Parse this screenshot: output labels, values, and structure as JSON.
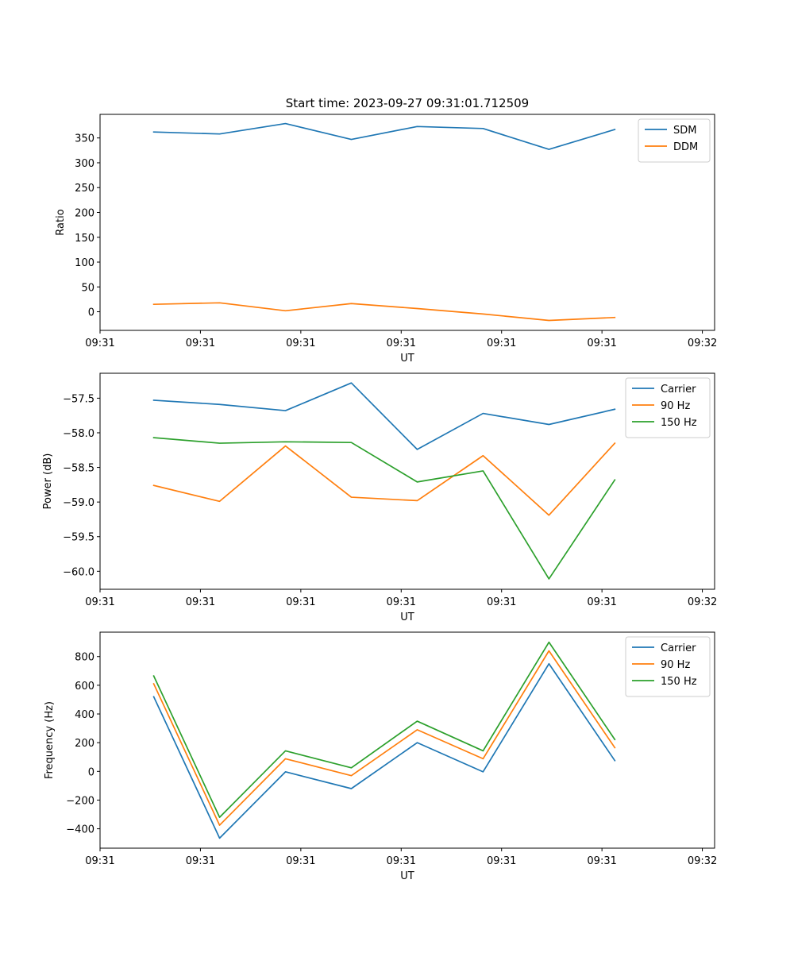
{
  "figure_title": "Start time: 2023-09-27 09:31:01.712509",
  "chart_data": [
    {
      "type": "line",
      "name": "ratio",
      "title": "Start time: 2023-09-27 09:31:01.712509",
      "xlabel": "UT",
      "ylabel": "Ratio",
      "x": [
        1,
        2,
        3,
        4,
        5,
        6,
        7,
        8
      ],
      "xlim": [
        0.185,
        9.515
      ],
      "xticks": [
        0.185,
        1.709,
        3.233,
        4.757,
        6.281,
        7.805,
        9.329
      ],
      "xtick_labels": [
        "09:31",
        "09:31",
        "09:31",
        "09:31",
        "09:31",
        "09:31",
        "09:32"
      ],
      "ylim": [
        -37.5,
        397.5
      ],
      "yticks": [
        0,
        50,
        100,
        150,
        200,
        250,
        300,
        350
      ],
      "ytick_labels": [
        "0",
        "50",
        "100",
        "150",
        "200",
        "250",
        "300",
        "350"
      ],
      "legend_position": "upper right",
      "series": [
        {
          "name": "SDM",
          "color": "#1f77b4",
          "values": [
            362,
            358,
            379,
            347,
            373,
            369,
            327,
            367
          ]
        },
        {
          "name": "DDM",
          "color": "#ff7f0e",
          "values": [
            15,
            18,
            2,
            16.5,
            6.5,
            -4.5,
            -17.5,
            -11.5
          ]
        }
      ]
    },
    {
      "type": "line",
      "name": "power",
      "title": "",
      "xlabel": "UT",
      "ylabel": "Power (dB)",
      "x": [
        1,
        2,
        3,
        4,
        5,
        6,
        7,
        8
      ],
      "xlim": [
        0.185,
        9.515
      ],
      "xticks": [
        0.185,
        1.709,
        3.233,
        4.757,
        6.281,
        7.805,
        9.329
      ],
      "xtick_labels": [
        "09:31",
        "09:31",
        "09:31",
        "09:31",
        "09:31",
        "09:31",
        "09:32"
      ],
      "ylim": [
        -60.26,
        -57.14
      ],
      "yticks": [
        -60.0,
        -59.5,
        -59.0,
        -58.5,
        -58.0,
        -57.5
      ],
      "ytick_labels": [
        "−60.0",
        "−59.5",
        "−59.0",
        "−58.5",
        "−58.0",
        "−57.5"
      ],
      "legend_position": "upper right",
      "series": [
        {
          "name": "Carrier",
          "color": "#1f77b4",
          "values": [
            -57.53,
            -57.59,
            -57.68,
            -57.28,
            -58.24,
            -57.72,
            -57.88,
            -57.66
          ]
        },
        {
          "name": "90 Hz",
          "color": "#ff7f0e",
          "values": [
            -58.76,
            -58.99,
            -58.19,
            -58.93,
            -58.98,
            -58.33,
            -59.19,
            -58.15
          ]
        },
        {
          "name": "150 Hz",
          "color": "#2ca02c",
          "values": [
            -58.07,
            -58.15,
            -58.13,
            -58.14,
            -58.71,
            -58.55,
            -60.11,
            -58.68
          ]
        }
      ]
    },
    {
      "type": "line",
      "name": "frequency",
      "title": "",
      "xlabel": "UT",
      "ylabel": "Frequency (Hz)",
      "x": [
        1,
        2,
        3,
        4,
        5,
        6,
        7,
        8
      ],
      "xlim": [
        0.185,
        9.515
      ],
      "xticks": [
        0.185,
        1.709,
        3.233,
        4.757,
        6.281,
        7.805,
        9.329
      ],
      "xtick_labels": [
        "09:31",
        "09:31",
        "09:31",
        "09:31",
        "09:31",
        "09:31",
        "09:32"
      ],
      "ylim": [
        -535,
        970
      ],
      "yticks": [
        -400,
        -200,
        0,
        200,
        400,
        600,
        800
      ],
      "ytick_labels": [
        "−400",
        "−200",
        "0",
        "200",
        "400",
        "600",
        "800"
      ],
      "legend_position": "upper right",
      "series": [
        {
          "name": "Carrier",
          "color": "#1f77b4",
          "values": [
            520,
            -465,
            -3,
            -120,
            200,
            -3,
            750,
            75
          ]
        },
        {
          "name": "90 Hz",
          "color": "#ff7f0e",
          "values": [
            610,
            -375,
            88,
            -30,
            290,
            88,
            840,
            165
          ]
        },
        {
          "name": "150 Hz",
          "color": "#2ca02c",
          "values": [
            665,
            -320,
            143,
            25,
            350,
            143,
            900,
            222
          ]
        }
      ]
    }
  ]
}
